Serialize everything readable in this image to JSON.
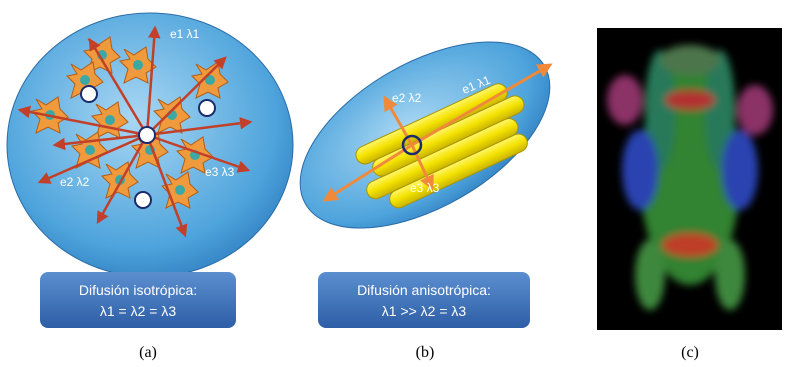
{
  "panel_a": {
    "e1": "e1 λ1",
    "e2": "e2 λ2",
    "e3": "e3 λ3",
    "box_title": "Difusión isotrópica:",
    "box_formula": "λ1 = λ2 = λ3",
    "caption": "(a)"
  },
  "panel_b": {
    "e1": "e1 λ1",
    "e2": "e2 λ2",
    "e3": "e3 λ3",
    "box_title": "Difusión anisotrópica:",
    "box_formula": "λ1 >> λ2 = λ3",
    "caption": "(b)"
  },
  "panel_c": {
    "caption": "(c)"
  }
}
